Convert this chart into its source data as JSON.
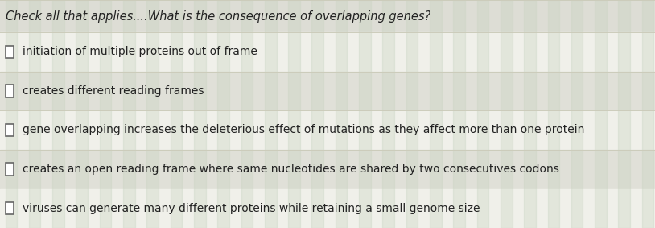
{
  "title": "Check all that applies....What is the consequence of overlapping genes?",
  "title_fontsize": 10.5,
  "title_color": "#222222",
  "options": [
    "initiation of multiple proteins out of frame",
    "creates different reading frames",
    "gene overlapping increases the deleterious effect of mutations as they affect more than one protein",
    "creates an open reading frame where same nucleotides are shared by two consecutives codons",
    "viruses can generate many different proteins while retaining a small genome size"
  ],
  "option_fontsize": 10,
  "option_color": "#222222",
  "background_color": "#e8e8e0",
  "row_bg_light": "#f0f0ea",
  "row_bg_dark": "#e0e0d8",
  "line_color": "#ccccbb",
  "stripe_color": "#c8d4c0",
  "stripe_alpha": 0.35,
  "title_bg": "#ddddd5"
}
